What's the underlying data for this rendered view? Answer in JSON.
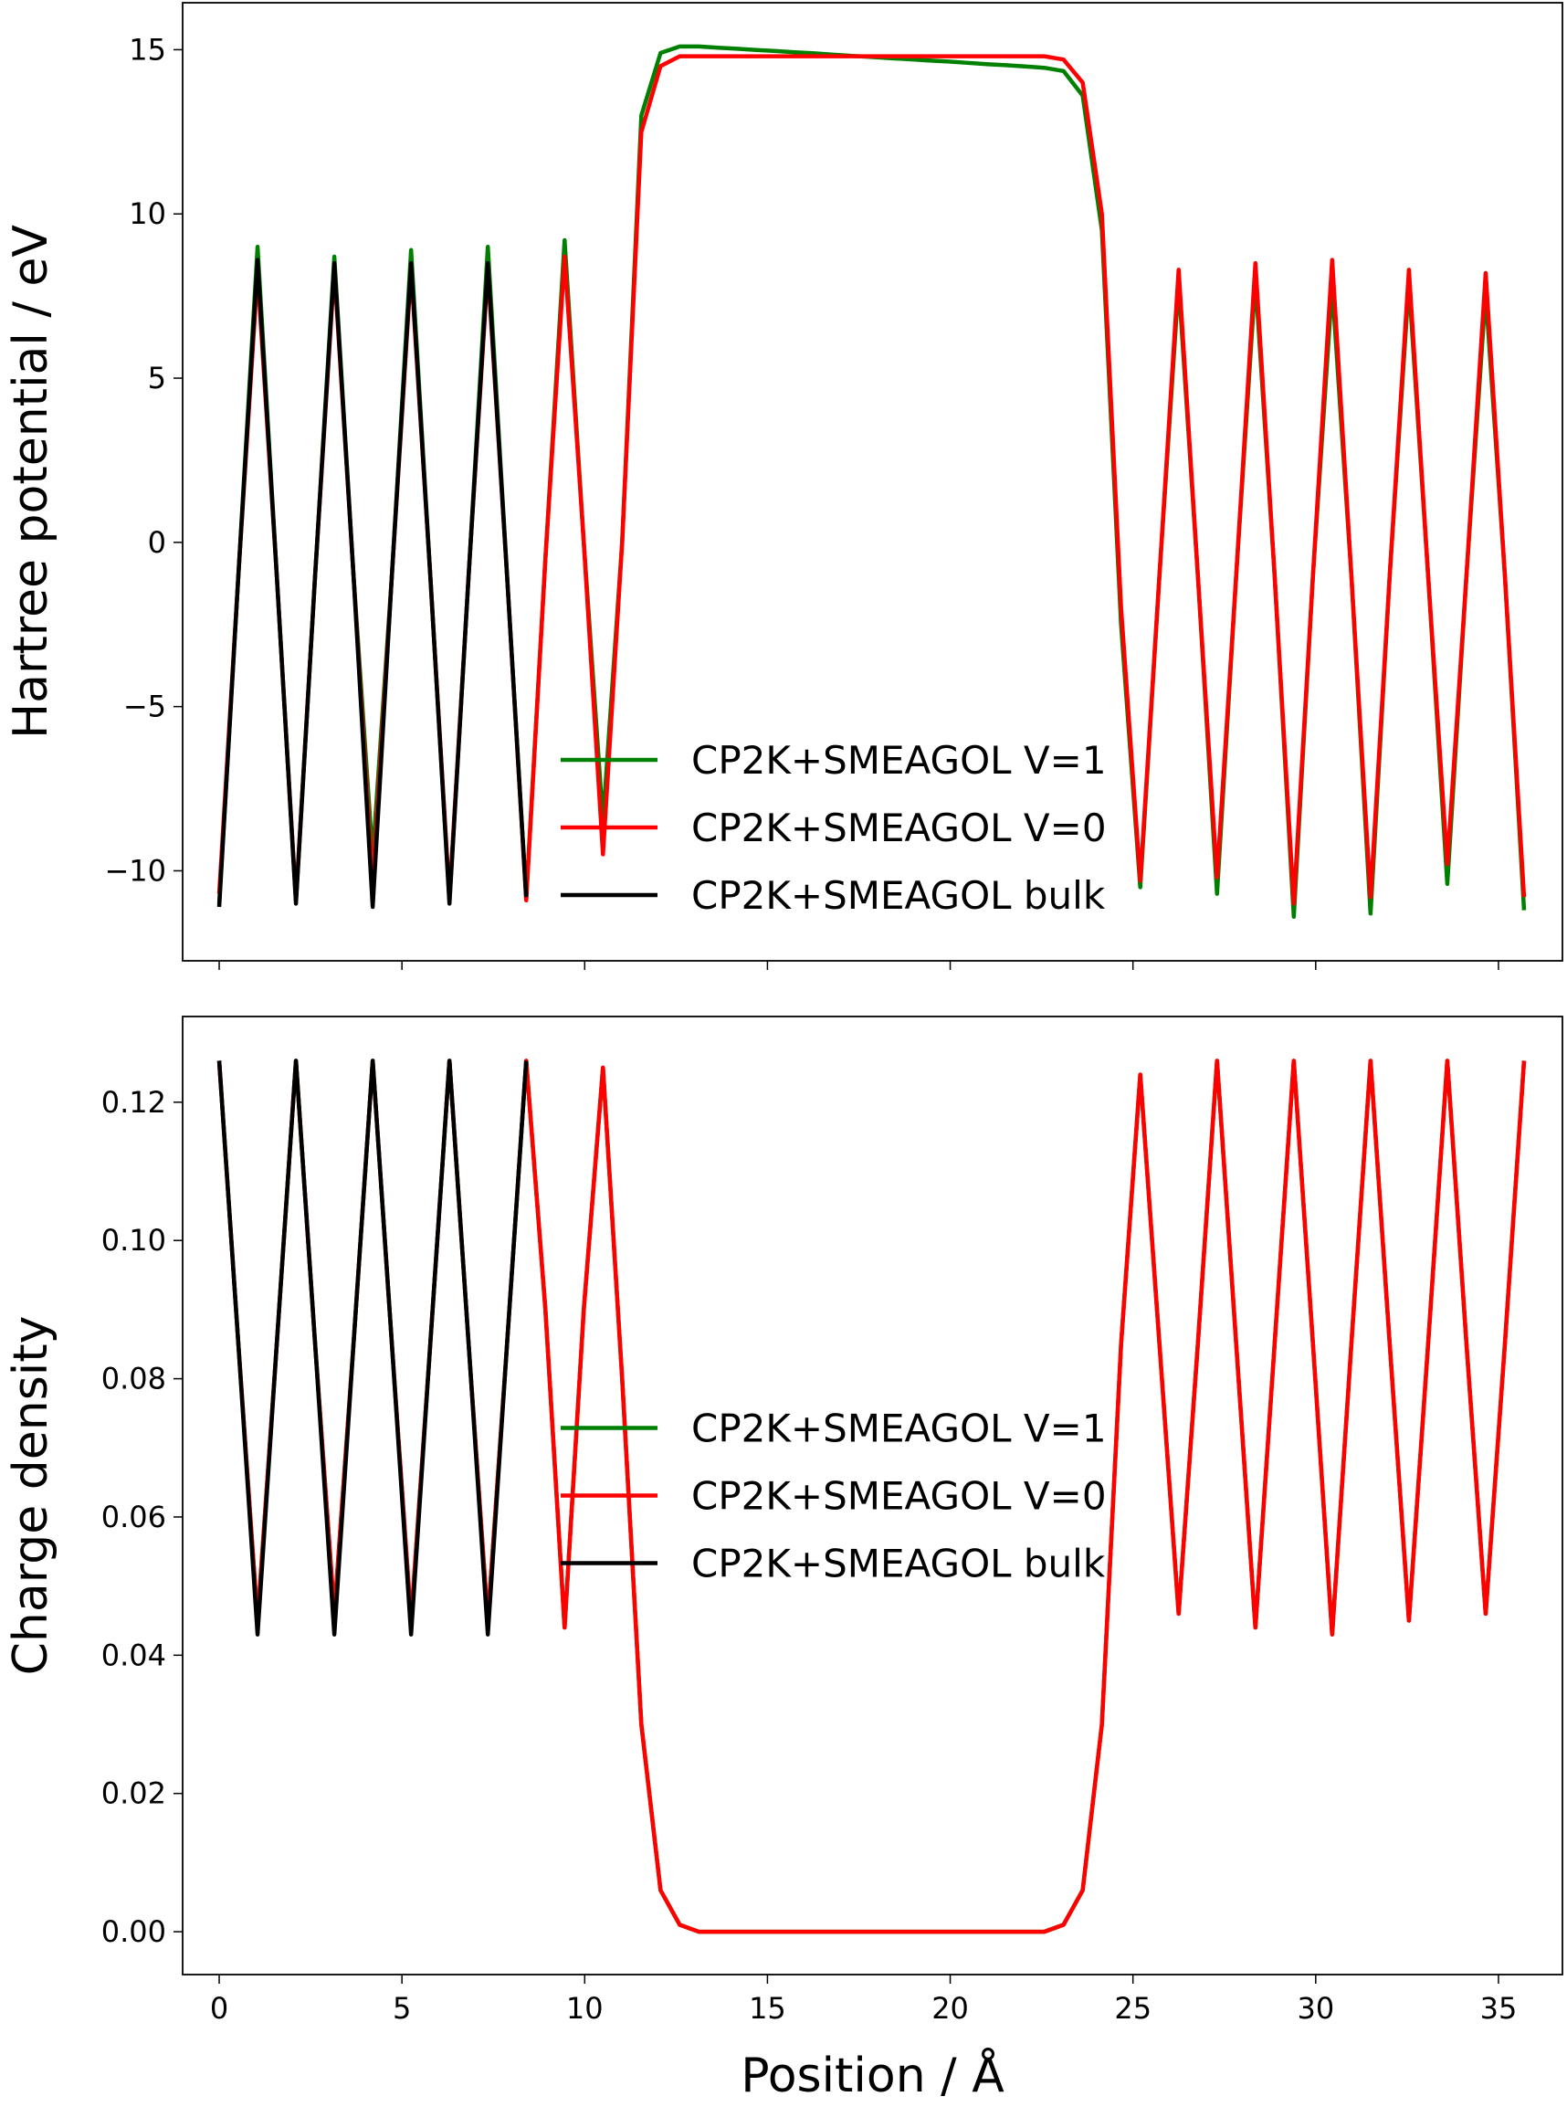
{
  "chart_data": [
    {
      "type": "line",
      "ylabel": "Hartree potential / eV",
      "legend_loc": "lower center",
      "xlim": [
        -1,
        36.75
      ],
      "xticks": [
        0,
        5,
        10,
        15,
        20,
        25,
        30,
        35
      ],
      "ylim": [
        -12.74,
        16.43
      ],
      "yticks": [
        {
          "value": -10,
          "label": "−10"
        },
        {
          "value": -5,
          "label": "−5"
        },
        0,
        5,
        10,
        15
      ],
      "x": [
        0,
        0.525,
        1.05,
        1.575,
        2.1,
        2.625,
        3.15,
        3.675,
        4.2,
        4.725,
        5.25,
        5.775,
        6.3,
        6.825,
        7.35,
        7.875,
        8.4,
        8.925,
        9.45,
        9.975,
        10.5,
        11.025,
        11.55,
        12.075,
        12.6,
        13.125,
        13.65,
        14.175,
        14.7,
        15.225,
        15.75,
        16.275,
        16.8,
        17.325,
        17.85,
        18.375,
        18.9,
        19.425,
        19.95,
        20.475,
        21,
        21.525,
        22.05,
        22.575,
        23.1,
        23.625,
        24.15,
        24.675,
        25.2,
        25.725,
        26.25,
        26.775,
        27.3,
        27.825,
        28.35,
        28.875,
        29.4,
        29.925,
        30.45,
        30.975,
        31.5,
        32.025,
        32.55,
        33.075,
        33.6,
        34.125,
        34.65,
        35.175,
        35.7
      ],
      "series": [
        {
          "name": "CP2K+SMEAGOL V=1",
          "color": "#008000",
          "values": [
            -11,
            -1,
            9.0,
            -1,
            -10.9,
            -1,
            8.7,
            -1,
            -9.6,
            -1,
            8.9,
            -1,
            -10.9,
            -1,
            9.0,
            -1,
            -10.8,
            -0.5,
            9.2,
            0,
            -8.5,
            0,
            13,
            14.9,
            15.1,
            15.1,
            15.06,
            15.03,
            14.99,
            14.96,
            14.92,
            14.89,
            14.85,
            14.81,
            14.78,
            14.74,
            14.71,
            14.67,
            14.64,
            14.6,
            14.56,
            14.53,
            14.49,
            14.45,
            14.35,
            13.6,
            9.5,
            -2.5,
            -10.5,
            -1,
            7.9,
            -1,
            -10.7,
            -1,
            8.0,
            -1,
            -11.4,
            -1,
            7.8,
            -1,
            -11.3,
            -1,
            7.9,
            -1,
            -10.4,
            -1,
            7.6,
            -1,
            -11.2
          ]
        },
        {
          "name": "CP2K+SMEAGOL V=0",
          "color": "#ff0000",
          "values": [
            -10.7,
            -1,
            8.2,
            -1,
            -10.9,
            -1,
            8.3,
            -1,
            -10.4,
            -1,
            8.3,
            -1,
            -10.8,
            -1,
            8.3,
            -1,
            -10.9,
            -0.5,
            8.7,
            0,
            -9.5,
            0,
            12.5,
            14.5,
            14.8,
            14.8,
            14.8,
            14.8,
            14.8,
            14.8,
            14.8,
            14.8,
            14.8,
            14.8,
            14.8,
            14.8,
            14.8,
            14.8,
            14.8,
            14.8,
            14.8,
            14.8,
            14.8,
            14.8,
            14.7,
            14.0,
            10,
            -2,
            -10.3,
            -1,
            8.3,
            -1,
            -10.2,
            -1,
            8.5,
            -1,
            -11,
            -1,
            8.6,
            -1,
            -10.8,
            -1,
            8.3,
            -1,
            -9.8,
            -1,
            8.2,
            -1,
            -10.8
          ]
        },
        {
          "name": "CP2K+SMEAGOL bulk",
          "color": "#000000",
          "x": [
            0,
            0.525,
            1.05,
            1.575,
            2.1,
            2.625,
            3.15,
            3.675,
            4.2,
            4.725,
            5.25,
            5.775,
            6.3,
            6.825,
            7.35,
            7.875,
            8.4
          ],
          "values": [
            -11.1,
            -1,
            8.6,
            -1,
            -11,
            -1,
            8.5,
            -1,
            -11.1,
            -1,
            8.5,
            -1,
            -11,
            -1,
            8.5,
            -1,
            -10.8
          ]
        }
      ]
    },
    {
      "type": "line",
      "ylabel": "Charge density",
      "xlabel": "Position / Å",
      "legend_loc": "center",
      "xlim": [
        -1,
        36.75
      ],
      "xticks": [
        0,
        5,
        10,
        15,
        20,
        25,
        30,
        35
      ],
      "ylim": [
        -0.0062,
        0.1324
      ],
      "yticks": [
        {
          "value": 0,
          "label": "0.00"
        },
        0.02,
        0.04,
        0.06,
        0.08,
        {
          "value": 0.1,
          "label": "0.10"
        },
        0.12
      ],
      "x": [
        0,
        0.525,
        1.05,
        1.575,
        2.1,
        2.625,
        3.15,
        3.675,
        4.2,
        4.725,
        5.25,
        5.775,
        6.3,
        6.825,
        7.35,
        7.875,
        8.4,
        8.925,
        9.45,
        9.975,
        10.5,
        11.025,
        11.55,
        12.075,
        12.6,
        13.125,
        13.65,
        14.175,
        14.7,
        15.225,
        15.75,
        16.275,
        16.8,
        17.325,
        17.85,
        18.375,
        18.9,
        19.425,
        19.95,
        20.475,
        21,
        21.525,
        22.05,
        22.575,
        23.1,
        23.625,
        24.15,
        24.675,
        25.2,
        25.725,
        26.25,
        26.775,
        27.3,
        27.825,
        28.35,
        28.875,
        29.4,
        29.925,
        30.45,
        30.975,
        31.5,
        32.025,
        32.55,
        33.075,
        33.6,
        34.125,
        34.65,
        35.175,
        35.7
      ],
      "series": [
        {
          "name": "CP2K+SMEAGOL V=1",
          "color": "#008000",
          "values": [
            0.126,
            0.085,
            0.045,
            0.085,
            0.126,
            0.085,
            0.046,
            0.085,
            0.126,
            0.085,
            0.045,
            0.085,
            0.126,
            0.085,
            0.045,
            0.085,
            0.126,
            0.09,
            0.044,
            0.09,
            0.125,
            0.08,
            0.03,
            0.006,
            0.001,
            0,
            0,
            0,
            0,
            0,
            0,
            0,
            0,
            0,
            0,
            0,
            0,
            0,
            0,
            0,
            0,
            0,
            0,
            0,
            0.001,
            0.006,
            0.03,
            0.085,
            0.124,
            0.085,
            0.046,
            0.085,
            0.126,
            0.085,
            0.044,
            0.085,
            0.126,
            0.085,
            0.043,
            0.085,
            0.126,
            0.085,
            0.045,
            0.085,
            0.126,
            0.085,
            0.046,
            0.085,
            0.126
          ]
        },
        {
          "name": "CP2K+SMEAGOL V=0",
          "color": "#ff0000",
          "values": [
            0.126,
            0.085,
            0.045,
            0.085,
            0.126,
            0.085,
            0.046,
            0.085,
            0.126,
            0.085,
            0.045,
            0.085,
            0.126,
            0.085,
            0.045,
            0.085,
            0.126,
            0.09,
            0.044,
            0.09,
            0.125,
            0.08,
            0.03,
            0.006,
            0.001,
            0,
            0,
            0,
            0,
            0,
            0,
            0,
            0,
            0,
            0,
            0,
            0,
            0,
            0,
            0,
            0,
            0,
            0,
            0,
            0.001,
            0.006,
            0.03,
            0.085,
            0.124,
            0.085,
            0.046,
            0.085,
            0.126,
            0.085,
            0.044,
            0.085,
            0.126,
            0.085,
            0.043,
            0.085,
            0.126,
            0.085,
            0.045,
            0.085,
            0.126,
            0.085,
            0.046,
            0.085,
            0.126
          ]
        },
        {
          "name": "CP2K+SMEAGOL bulk",
          "color": "#000000",
          "x": [
            0,
            0.525,
            1.05,
            1.575,
            2.1,
            2.625,
            3.15,
            3.675,
            4.2,
            4.725,
            5.25,
            5.775,
            6.3,
            6.825,
            7.35,
            7.875,
            8.4
          ],
          "values": [
            0.126,
            0.085,
            0.043,
            0.085,
            0.126,
            0.085,
            0.043,
            0.085,
            0.126,
            0.085,
            0.043,
            0.085,
            0.126,
            0.085,
            0.043,
            0.085,
            0.126
          ]
        }
      ]
    }
  ]
}
